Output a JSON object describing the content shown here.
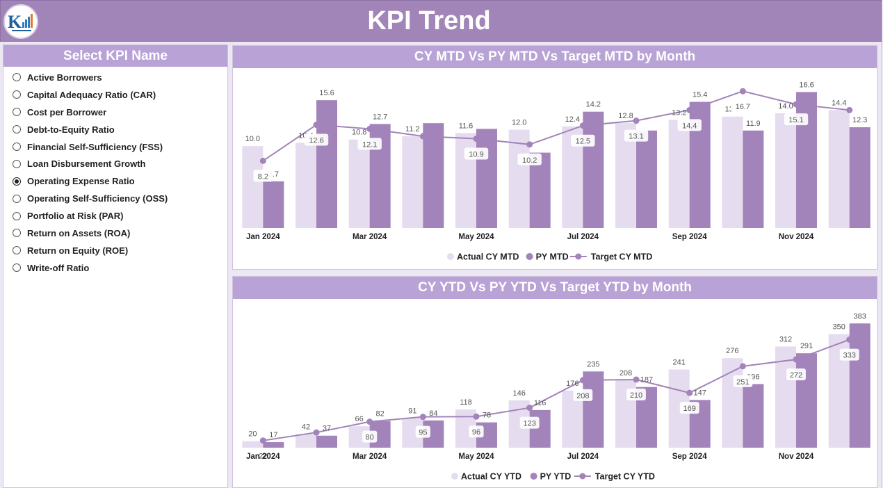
{
  "header": {
    "title": "KPI Trend"
  },
  "colors": {
    "actual": "#e6dcef",
    "py": "#a283ba",
    "target": "#a283ba",
    "header": "#a285b8",
    "panel_title": "#b8a2d6"
  },
  "slicer": {
    "title": "Select KPI Name",
    "items": [
      {
        "label": "Active Borrowers",
        "selected": false
      },
      {
        "label": "Capital Adequacy Ratio (CAR)",
        "selected": false
      },
      {
        "label": "Cost per Borrower",
        "selected": false
      },
      {
        "label": "Debt-to-Equity Ratio",
        "selected": false
      },
      {
        "label": "Financial Self-Sufficiency (FSS)",
        "selected": false
      },
      {
        "label": "Loan Disbursement Growth",
        "selected": false
      },
      {
        "label": "Operating Expense Ratio",
        "selected": true
      },
      {
        "label": "Operating Self-Sufficiency (OSS)",
        "selected": false
      },
      {
        "label": "Portfolio at Risk (PAR)",
        "selected": false
      },
      {
        "label": "Return on Assets (ROA)",
        "selected": false
      },
      {
        "label": "Return on Equity (ROE)",
        "selected": false
      },
      {
        "label": "Write-off Ratio",
        "selected": false
      }
    ]
  },
  "chart_data": [
    {
      "type": "bar",
      "title": "CY MTD Vs PY MTD Vs Target MTD by Month",
      "categories": [
        "Jan 2024",
        "Feb 2024",
        "Mar 2024",
        "Apr 2024",
        "May 2024",
        "Jun 2024",
        "Jul 2024",
        "Aug 2024",
        "Sep 2024",
        "Oct 2024",
        "Nov 2024",
        "Dec 2024"
      ],
      "tick_labels": [
        "Jan 2024",
        "",
        "Mar 2024",
        "",
        "May 2024",
        "",
        "Jul 2024",
        "",
        "Sep 2024",
        "",
        "Nov 2024",
        ""
      ],
      "series": [
        {
          "name": "Actual CY MTD",
          "kind": "bar",
          "values": [
            10.0,
            10.4,
            10.8,
            11.2,
            11.6,
            12.0,
            12.4,
            12.8,
            13.2,
            13.6,
            14.0,
            14.4
          ]
        },
        {
          "name": "PY MTD",
          "kind": "bar",
          "values": [
            5.7,
            15.6,
            12.7,
            12.8,
            12.1,
            9.2,
            14.2,
            11.9,
            15.4,
            11.9,
            16.6,
            12.3
          ]
        },
        {
          "name": "Target CY MTD",
          "kind": "line",
          "values": [
            8.2,
            12.6,
            12.1,
            11.2,
            10.9,
            10.2,
            12.5,
            13.1,
            14.4,
            16.7,
            15.1,
            14.4
          ]
        }
      ],
      "label_text": {
        "actual": [
          "10.0",
          "10.4",
          "10.8",
          "11.2",
          "11.6",
          "12.0",
          "12.4",
          "12.8",
          "13.2",
          "13.6",
          "14.0",
          "14.4"
        ],
        "py": [
          "5.7",
          "15.6",
          "12.7",
          "",
          "",
          "",
          "14.2",
          "",
          "15.4",
          "11.9",
          "16.6",
          "12.3"
        ],
        "target": [
          "8.2",
          "12.6",
          "12.1",
          "",
          "10.9",
          "10.2",
          "12.5",
          "13.1",
          "14.4",
          "16.7",
          "15.1",
          ""
        ]
      },
      "ylim": [
        0,
        18.5
      ]
    },
    {
      "type": "bar",
      "title": "CY YTD Vs PY YTD Vs Target YTD by Month",
      "categories": [
        "Jan 2024",
        "Feb 2024",
        "Mar 2024",
        "Apr 2024",
        "May 2024",
        "Jun 2024",
        "Jul 2024",
        "Aug 2024",
        "Sep 2024",
        "Oct 2024",
        "Nov 2024",
        "Dec 2024"
      ],
      "tick_labels": [
        "Jan 2024",
        "",
        "Mar 2024",
        "",
        "May 2024",
        "",
        "Jul 2024",
        "",
        "Sep 2024",
        "",
        "Nov 2024",
        ""
      ],
      "series": [
        {
          "name": "Actual CY YTD",
          "kind": "bar",
          "values": [
            20,
            42,
            66,
            91,
            118,
            146,
            176,
            208,
            241,
            276,
            312,
            350
          ]
        },
        {
          "name": "PY YTD",
          "kind": "bar",
          "values": [
            17,
            37,
            82,
            84,
            78,
            116,
            235,
            187,
            147,
            196,
            291,
            383
          ]
        },
        {
          "name": "Target CY YTD",
          "kind": "line",
          "values": [
            22,
            47,
            80,
            95,
            96,
            123,
            208,
            210,
            169,
            251,
            272,
            333
          ]
        }
      ],
      "label_text": {
        "actual": [
          "20",
          "42",
          "66",
          "91",
          "118",
          "146",
          "176",
          "208",
          "241",
          "276",
          "312",
          "350"
        ],
        "py": [
          "17",
          "37",
          "82",
          "84",
          "78",
          "116",
          "235",
          "187",
          "147",
          "196",
          "291",
          "383"
        ],
        "target": [
          "22",
          "",
          "80",
          "95",
          "96",
          "123",
          "208",
          "210",
          "169",
          "251",
          "272",
          "333"
        ]
      },
      "ylim": [
        0,
        420
      ]
    }
  ]
}
